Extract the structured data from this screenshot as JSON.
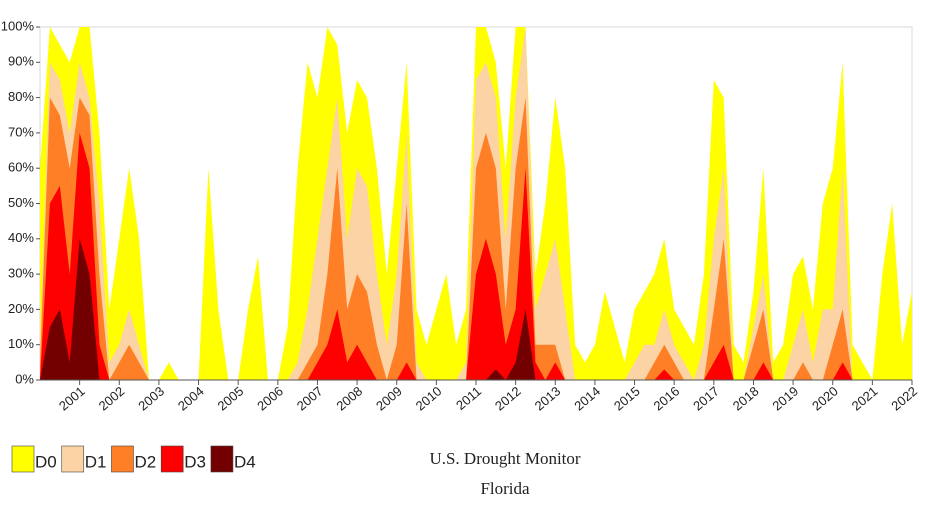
{
  "chart_data": {
    "type": "area",
    "title": "U.S. Drought Monitor",
    "subtitle": "Florida",
    "x": [
      2000,
      2000.25,
      2000.5,
      2000.75,
      2001,
      2001.25,
      2001.5,
      2001.75,
      2002,
      2002.25,
      2002.5,
      2002.75,
      2003,
      2003.25,
      2003.5,
      2003.75,
      2004,
      2004.25,
      2004.5,
      2004.75,
      2005,
      2005.25,
      2005.5,
      2005.75,
      2006,
      2006.25,
      2006.5,
      2006.75,
      2007,
      2007.25,
      2007.5,
      2007.75,
      2008,
      2008.25,
      2008.5,
      2008.75,
      2009,
      2009.25,
      2009.5,
      2009.75,
      2010,
      2010.25,
      2010.5,
      2010.75,
      2011,
      2011.25,
      2011.5,
      2011.75,
      2012,
      2012.25,
      2012.5,
      2012.75,
      2013,
      2013.25,
      2013.5,
      2013.75,
      2014,
      2014.25,
      2014.5,
      2014.75,
      2015,
      2015.25,
      2015.5,
      2015.75,
      2016,
      2016.25,
      2016.5,
      2016.75,
      2017,
      2017.25,
      2017.5,
      2017.75,
      2018,
      2018.25,
      2018.5,
      2018.75,
      2019,
      2019.25,
      2019.5,
      2019.75,
      2020,
      2020.25,
      2020.5,
      2020.75,
      2021,
      2021.25,
      2021.5,
      2021.75,
      2022
    ],
    "series": [
      {
        "name": "D0",
        "color": "#ffff00",
        "values": [
          60,
          100,
          95,
          90,
          100,
          100,
          70,
          20,
          40,
          60,
          40,
          0,
          0,
          5,
          0,
          0,
          0,
          60,
          20,
          0,
          0,
          20,
          35,
          0,
          0,
          15,
          60,
          90,
          80,
          100,
          95,
          70,
          85,
          80,
          60,
          30,
          60,
          90,
          20,
          10,
          20,
          30,
          10,
          20,
          100,
          100,
          90,
          60,
          100,
          100,
          30,
          50,
          80,
          60,
          10,
          5,
          10,
          25,
          15,
          5,
          20,
          25,
          30,
          40,
          20,
          15,
          10,
          30,
          85,
          80,
          10,
          5,
          25,
          60,
          5,
          10,
          30,
          35,
          20,
          50,
          60,
          90,
          10,
          5,
          0,
          30,
          50,
          10,
          25
        ]
      },
      {
        "name": "D1",
        "color": "#fcd3a5",
        "values": [
          10,
          90,
          85,
          70,
          90,
          80,
          50,
          5,
          10,
          20,
          10,
          0,
          0,
          0,
          0,
          0,
          0,
          0,
          0,
          0,
          0,
          0,
          0,
          0,
          0,
          0,
          5,
          20,
          40,
          60,
          80,
          40,
          60,
          55,
          30,
          10,
          30,
          70,
          5,
          0,
          0,
          0,
          0,
          5,
          85,
          90,
          80,
          40,
          80,
          100,
          20,
          30,
          40,
          20,
          0,
          0,
          0,
          0,
          0,
          0,
          5,
          10,
          10,
          20,
          10,
          5,
          0,
          10,
          40,
          60,
          0,
          0,
          15,
          30,
          0,
          0,
          10,
          20,
          5,
          20,
          20,
          60,
          0,
          0,
          0,
          0,
          0,
          0,
          0
        ]
      },
      {
        "name": "D2",
        "color": "#ff7f27",
        "values": [
          5,
          80,
          75,
          60,
          80,
          75,
          30,
          0,
          5,
          10,
          5,
          0,
          0,
          0,
          0,
          0,
          0,
          0,
          0,
          0,
          0,
          0,
          0,
          0,
          0,
          0,
          0,
          5,
          10,
          30,
          60,
          20,
          30,
          25,
          10,
          0,
          10,
          50,
          0,
          0,
          0,
          0,
          0,
          0,
          60,
          70,
          60,
          20,
          60,
          80,
          10,
          10,
          10,
          0,
          0,
          0,
          0,
          0,
          0,
          0,
          0,
          0,
          5,
          10,
          5,
          0,
          0,
          0,
          20,
          40,
          0,
          0,
          10,
          20,
          0,
          0,
          0,
          5,
          0,
          0,
          10,
          20,
          0,
          0,
          0,
          0,
          0,
          0,
          0
        ]
      },
      {
        "name": "D3",
        "color": "#ff0000",
        "values": [
          0,
          50,
          55,
          30,
          70,
          60,
          10,
          0,
          0,
          0,
          0,
          0,
          0,
          0,
          0,
          0,
          0,
          0,
          0,
          0,
          0,
          0,
          0,
          0,
          0,
          0,
          0,
          0,
          5,
          10,
          20,
          5,
          10,
          5,
          0,
          0,
          0,
          5,
          0,
          0,
          0,
          0,
          0,
          0,
          30,
          40,
          30,
          10,
          20,
          60,
          5,
          0,
          5,
          0,
          0,
          0,
          0,
          0,
          0,
          0,
          0,
          0,
          0,
          3,
          0,
          0,
          0,
          0,
          5,
          10,
          0,
          0,
          0,
          5,
          0,
          0,
          0,
          0,
          0,
          0,
          0,
          5,
          0,
          0,
          0,
          0,
          0,
          0,
          0
        ]
      },
      {
        "name": "D4",
        "color": "#730000",
        "values": [
          0,
          15,
          20,
          5,
          40,
          30,
          0,
          0,
          0,
          0,
          0,
          0,
          0,
          0,
          0,
          0,
          0,
          0,
          0,
          0,
          0,
          0,
          0,
          0,
          0,
          0,
          0,
          0,
          0,
          0,
          0,
          0,
          0,
          0,
          0,
          0,
          0,
          0,
          0,
          0,
          0,
          0,
          0,
          0,
          0,
          0,
          3,
          0,
          5,
          20,
          0,
          0,
          0,
          0,
          0,
          0,
          0,
          0,
          0,
          0,
          0,
          0,
          0,
          0,
          0,
          0,
          0,
          0,
          0,
          0,
          0,
          0,
          0,
          0,
          0,
          0,
          0,
          0,
          0,
          0,
          0,
          0,
          0,
          0,
          0,
          0,
          0,
          0,
          0
        ]
      }
    ],
    "xlim": [
      2000,
      2022
    ],
    "xticks": [
      2001,
      2002,
      2003,
      2004,
      2005,
      2006,
      2007,
      2008,
      2009,
      2010,
      2011,
      2012,
      2013,
      2014,
      2015,
      2016,
      2017,
      2018,
      2019,
      2020,
      2021,
      2022
    ],
    "ylim": [
      0,
      100
    ],
    "yticks": [
      {
        "value": 0,
        "label": "0%"
      },
      {
        "value": 10,
        "label": "10%"
      },
      {
        "value": 20,
        "label": "20%"
      },
      {
        "value": 30,
        "label": "30%"
      },
      {
        "value": 40,
        "label": "40%"
      },
      {
        "value": 50,
        "label": "50%"
      },
      {
        "value": 60,
        "label": "60%"
      },
      {
        "value": 70,
        "label": "70%"
      },
      {
        "value": 80,
        "label": "80%"
      },
      {
        "value": 90,
        "label": "90%"
      },
      {
        "value": 100,
        "label": "100%"
      }
    ],
    "legend": "bottom-left"
  }
}
